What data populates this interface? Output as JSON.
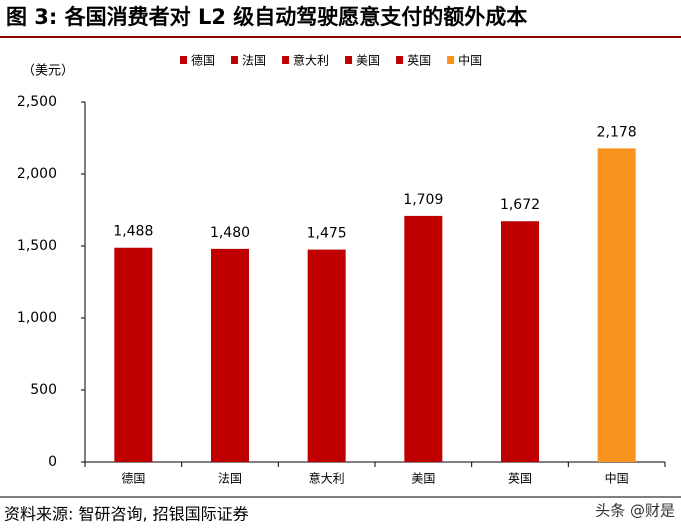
{
  "chart_data": {
    "type": "bar",
    "title": "图 3: 各国消费者对 L2 级自动驾驶愿意支付的额外成本",
    "unit_label": "（美元）",
    "categories": [
      "德国",
      "法国",
      "意大利",
      "美国",
      "英国",
      "中国"
    ],
    "values": [
      1488,
      1480,
      1475,
      1709,
      1672,
      2178
    ],
    "value_labels": [
      "1,488",
      "1,480",
      "1,475",
      "1,709",
      "1,672",
      "2,178"
    ],
    "colors": [
      "#c00000",
      "#c00000",
      "#c00000",
      "#c00000",
      "#c00000",
      "#f7931e"
    ],
    "ylim": [
      0,
      2500
    ],
    "yticks": [
      0,
      500,
      {
        "value": 1000,
        "label": "1,000"
      },
      {
        "value": 1500,
        "label": "1,500"
      },
      {
        "value": 2000,
        "label": "2,000"
      },
      {
        "value": 2500,
        "label": "2,500"
      }
    ],
    "grid": false,
    "legend": "top",
    "source": "资料来源: 智研咨询, 招银国际证券",
    "watermark": "头条 @财是"
  }
}
